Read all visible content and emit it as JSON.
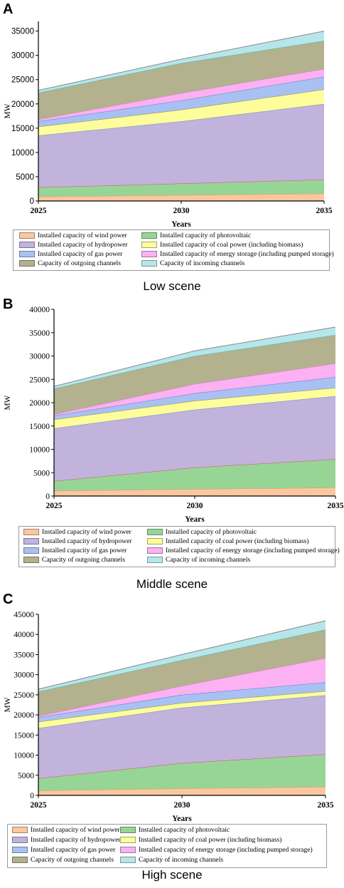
{
  "figure": {
    "panels": [
      {
        "letter": "A",
        "scene": "Low scene"
      },
      {
        "letter": "B",
        "scene": "Middle scene"
      },
      {
        "letter": "C",
        "scene": "High scene"
      }
    ]
  },
  "colors": {
    "wind": "#fbc79f",
    "pv": "#97d597",
    "hydro": "#c1b3dc",
    "coal": "#fdfd9b",
    "gas": "#a9c1f2",
    "storage": "#fbb1f2",
    "outgoing": "#b3b18e",
    "incoming": "#b6e6ea"
  },
  "chart_data": [
    {
      "type": "area",
      "stacked": true,
      "x": [
        2025,
        2030,
        2035
      ],
      "xlabel": "Years",
      "ylabel": "MW",
      "ylim": [
        0,
        37000
      ],
      "yticks": [
        0,
        5000,
        10000,
        15000,
        20000,
        25000,
        30000,
        35000
      ],
      "xticks": [
        2025,
        2030,
        2035
      ],
      "legend_position": "bottom",
      "series": [
        {
          "name": "Installed capacity of wind power",
          "values": [
            900,
            1200,
            1500
          ]
        },
        {
          "name": "Installed capacity of photovoltaic",
          "values": [
            1900,
            2400,
            2900
          ]
        },
        {
          "name": "Installed capacity of hydropower",
          "values": [
            10700,
            12800,
            15600
          ]
        },
        {
          "name": "Installed capacity of coal power (including biomass)",
          "values": [
            1800,
            2400,
            3000
          ]
        },
        {
          "name": "Installed capacity of gas power",
          "values": [
            1100,
            1900,
            2600
          ]
        },
        {
          "name": "Installed capacity of energy storage (including pumped storage)",
          "values": [
            400,
            1500,
            1600
          ]
        },
        {
          "name": "Capacity of outgoing channels",
          "values": [
            5500,
            6200,
            5800
          ]
        },
        {
          "name": "Capacity of incoming channels",
          "values": [
            500,
            800,
            2000
          ]
        }
      ]
    },
    {
      "type": "area",
      "stacked": true,
      "x": [
        2025,
        2030,
        2035
      ],
      "xlabel": "Years",
      "ylabel": "MW",
      "ylim": [
        0,
        40000
      ],
      "yticks": [
        0,
        5000,
        10000,
        15000,
        20000,
        25000,
        30000,
        35000,
        40000
      ],
      "xticks": [
        2025,
        2030,
        2035
      ],
      "legend_position": "bottom",
      "series": [
        {
          "name": "Installed capacity of wind power",
          "values": [
            1100,
            1500,
            1800
          ]
        },
        {
          "name": "Installed capacity of photovoltaic",
          "values": [
            2100,
            4600,
            6100
          ]
        },
        {
          "name": "Installed capacity of hydropower",
          "values": [
            11300,
            12400,
            13500
          ]
        },
        {
          "name": "Installed capacity of coal power (including biomass)",
          "values": [
            1900,
            1900,
            1800
          ]
        },
        {
          "name": "Installed capacity of gas power",
          "values": [
            800,
            1600,
            2300
          ]
        },
        {
          "name": "Installed capacity of energy storage (including pumped storage)",
          "values": [
            300,
            2000,
            2900
          ]
        },
        {
          "name": "Capacity of outgoing channels",
          "values": [
            5500,
            6000,
            6100
          ]
        },
        {
          "name": "Capacity of incoming channels",
          "values": [
            500,
            1100,
            1700
          ]
        }
      ]
    },
    {
      "type": "area",
      "stacked": true,
      "x": [
        2025,
        2030,
        2035
      ],
      "xlabel": "Years",
      "ylabel": "MW",
      "ylim": [
        0,
        45000
      ],
      "yticks": [
        0,
        5000,
        10000,
        15000,
        20000,
        25000,
        30000,
        35000,
        40000,
        45000
      ],
      "xticks": [
        2025,
        2030,
        2035
      ],
      "legend_position": "bottom",
      "series": [
        {
          "name": "Installed capacity of wind power",
          "values": [
            1200,
            1700,
            2100
          ]
        },
        {
          "name": "Installed capacity of photovoltaic",
          "values": [
            3000,
            6300,
            8100
          ]
        },
        {
          "name": "Installed capacity of hydropower",
          "values": [
            12500,
            13800,
            14700
          ]
        },
        {
          "name": "Installed capacity of coal power (including biomass)",
          "values": [
            1600,
            1200,
            1000
          ]
        },
        {
          "name": "Installed capacity of gas power",
          "values": [
            1100,
            2000,
            2200
          ]
        },
        {
          "name": "Installed capacity of energy storage (including pumped storage)",
          "values": [
            300,
            2200,
            6000
          ]
        },
        {
          "name": "Capacity of outgoing channels",
          "values": [
            6100,
            6400,
            7100
          ]
        },
        {
          "name": "Capacity of incoming channels",
          "values": [
            600,
            1400,
            2200
          ]
        }
      ]
    }
  ]
}
